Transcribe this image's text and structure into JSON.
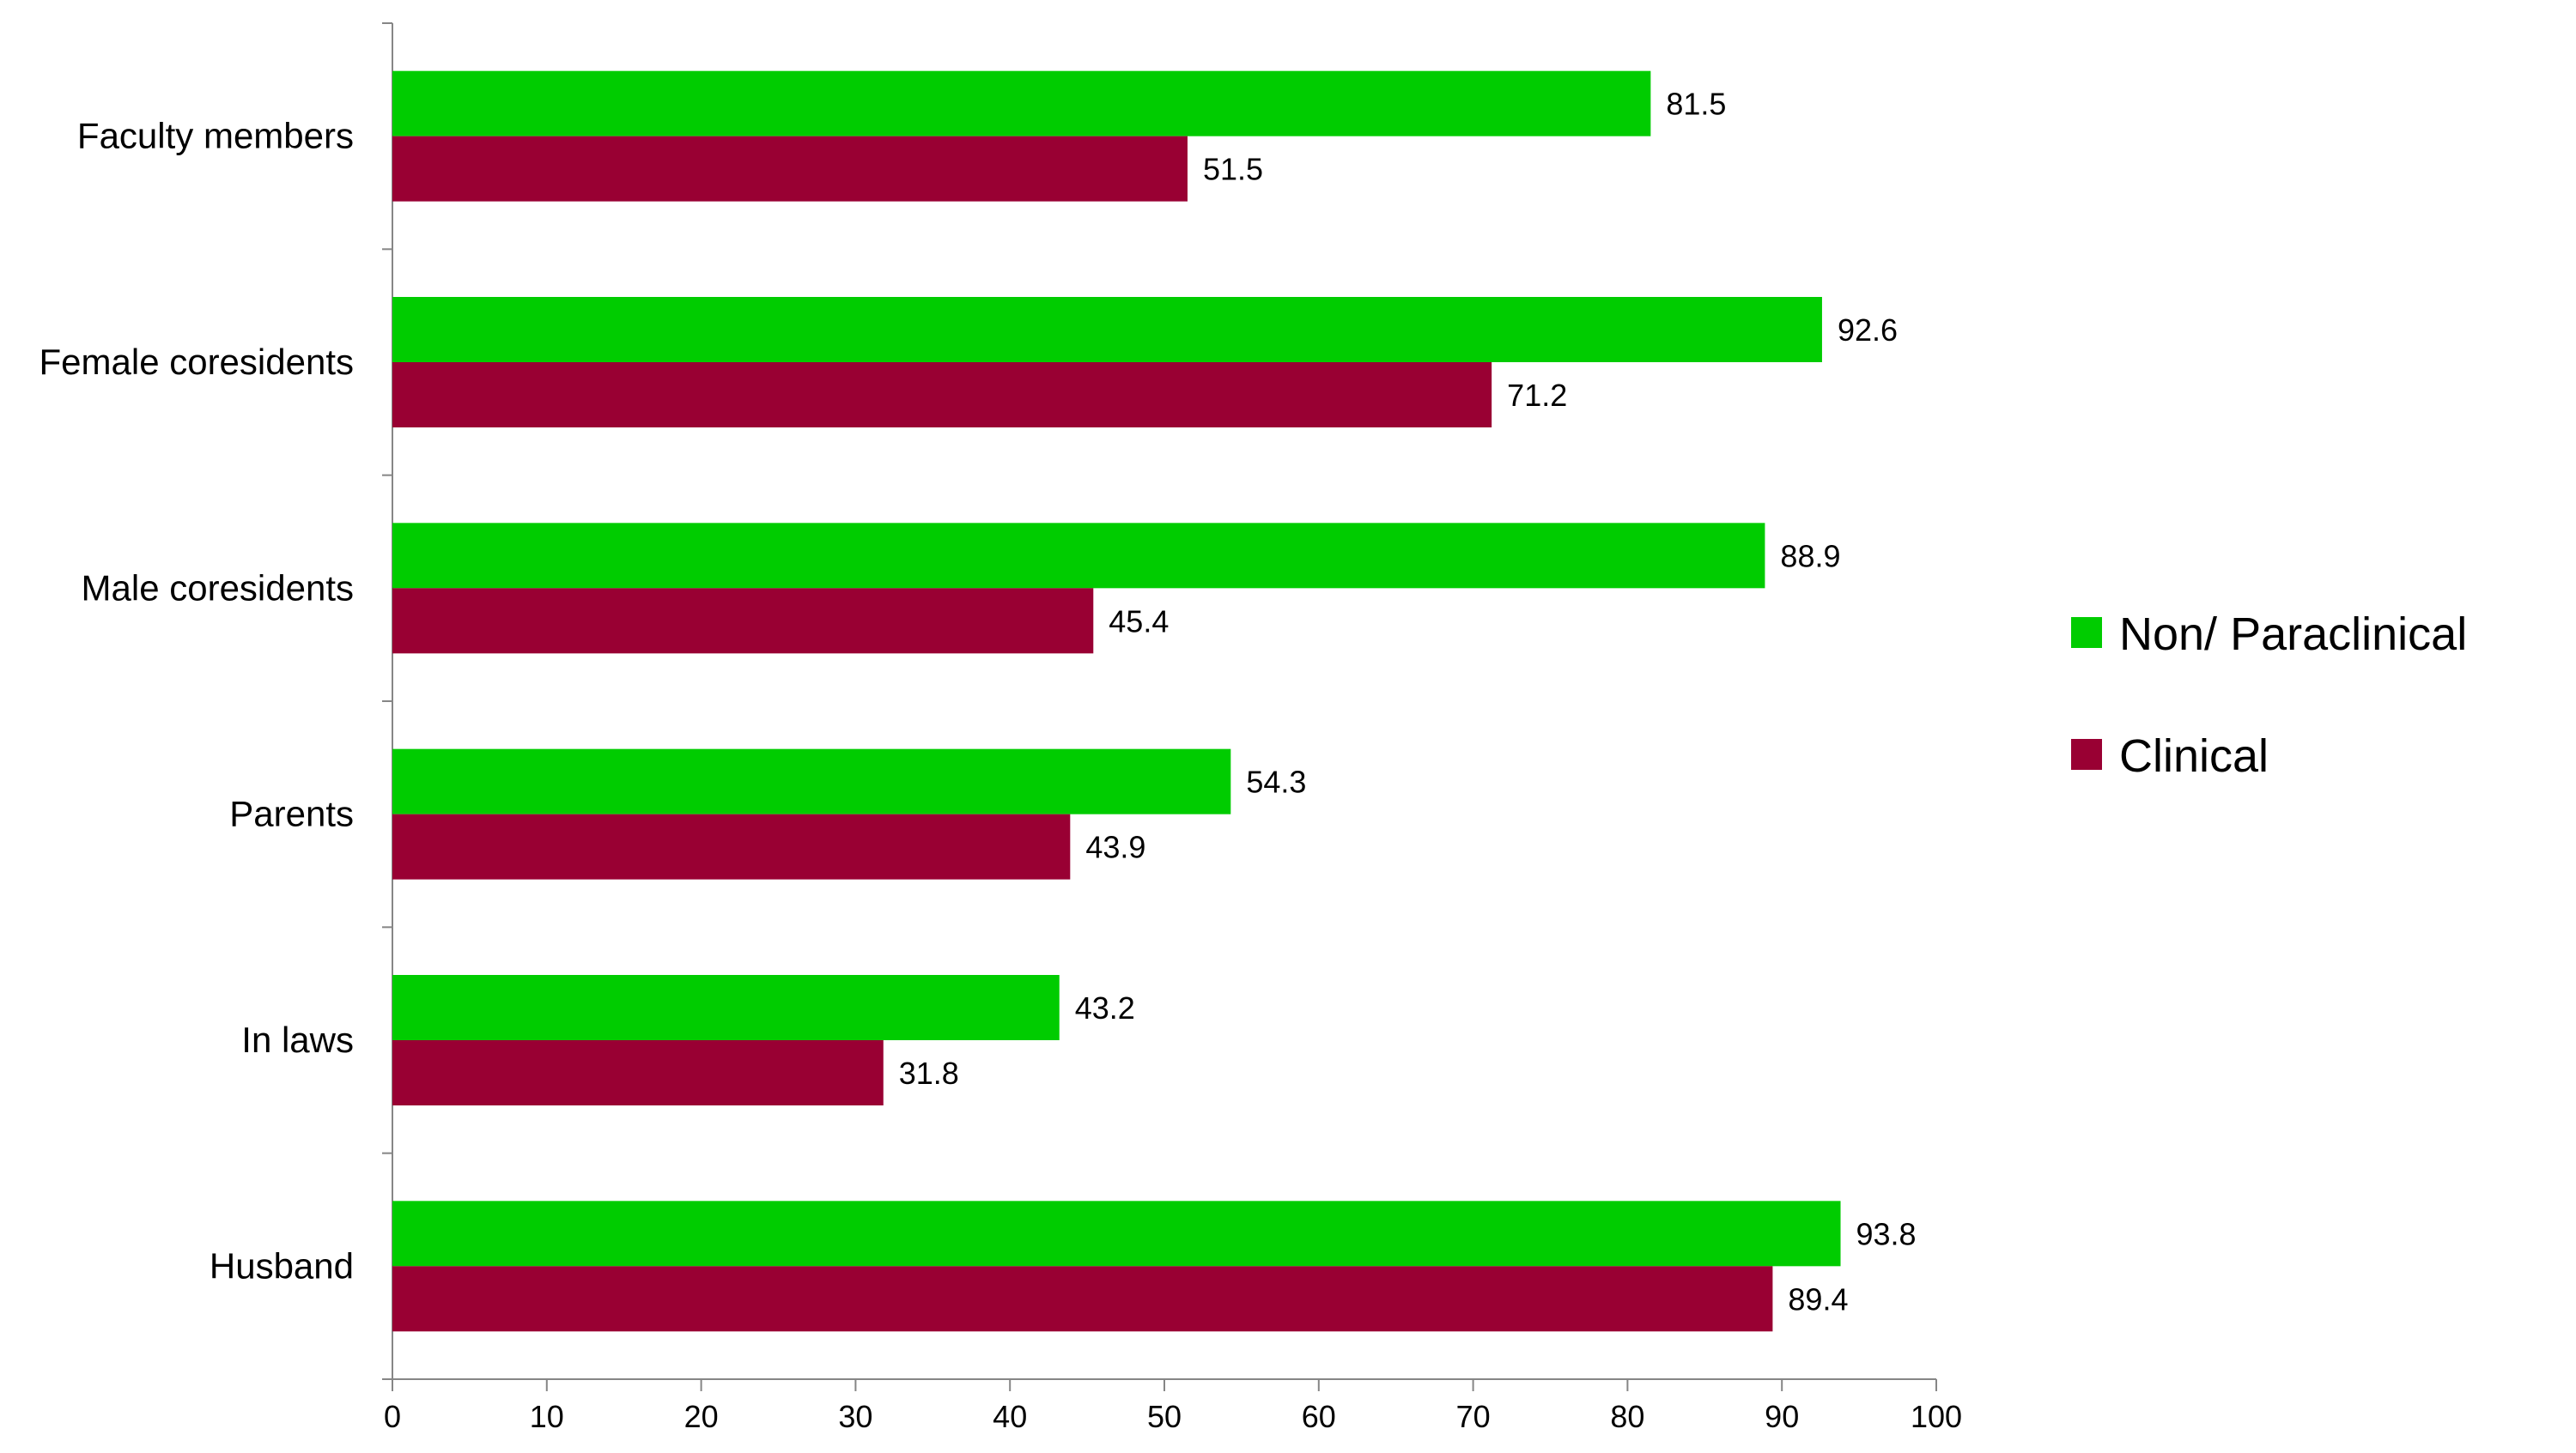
{
  "chart_data": {
    "type": "bar",
    "orientation": "horizontal",
    "title": "",
    "xlabel": "",
    "ylabel": "",
    "categories": [
      "Faculty members",
      "Female coresidents",
      "Male coresidents",
      "Parents",
      "In laws",
      "Husband"
    ],
    "series": [
      {
        "name": "Non/ Paraclinical",
        "color": "#00CC00",
        "values": [
          81.5,
          92.6,
          88.9,
          54.3,
          43.2,
          93.8
        ],
        "value_labels": [
          "81.5",
          "92.6",
          "88.9",
          "54.3",
          "43.2",
          "93.8"
        ]
      },
      {
        "name": "Clinical",
        "color": "#990033",
        "values": [
          51.5,
          71.2,
          45.4,
          43.9,
          31.8,
          89.4
        ],
        "value_labels": [
          "51.5",
          "71.2",
          "45.4",
          "43.9",
          "31.8",
          "89.4"
        ]
      }
    ],
    "xlim": [
      0,
      100
    ],
    "xticks": [
      "0",
      "10",
      "20",
      "30",
      "40",
      "50",
      "60",
      "70",
      "80",
      "90",
      "100"
    ],
    "grid": false,
    "legend_position": "right",
    "data_labels": true
  }
}
